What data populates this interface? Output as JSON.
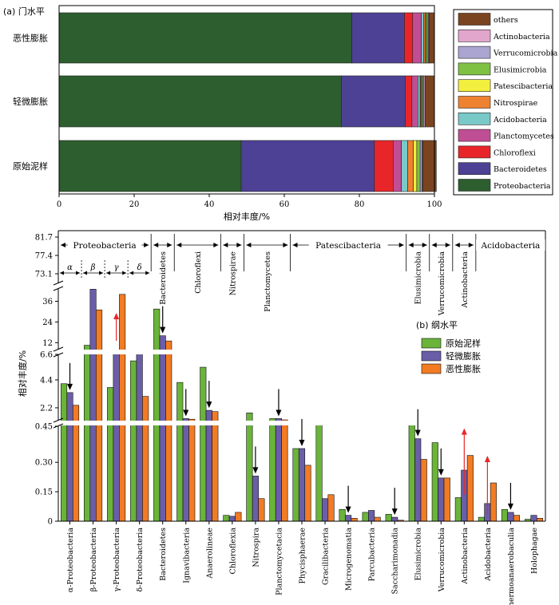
{
  "colors": {
    "phyla": {
      "Proteobacteria": "#2d5e2f",
      "Bacteroidetes": "#4d4195",
      "Chloroflexi": "#e8262a",
      "Planctomycetes": "#c04e95",
      "Acidobacteria": "#79c9c9",
      "Nitrospirae": "#ef8231",
      "Patescibacteria": "#f2ef3f",
      "Elusimicrobia": "#7fc143",
      "Verrucomicrobia": "#aaa4d0",
      "Actinobacteria": "#e2a6cc",
      "others": "#7a4420"
    },
    "groups": {
      "原始泥样": "#6ab43a",
      "轻微膨胀": "#6b5ea8",
      "恶性膨胀": "#f27b23"
    },
    "arrow_down": "#000000",
    "arrow_up": "#e8262a"
  },
  "chart_data": [
    {
      "type": "bar",
      "orientation": "horizontal",
      "stacked": true,
      "title": "(a) 门水平",
      "xlabel": "相对丰度/%",
      "xlim": [
        0,
        100
      ],
      "xticks": [
        "0",
        "20",
        "40",
        "60",
        "80",
        "100"
      ],
      "categories": [
        "恶性膨胀",
        "轻微膨胀",
        "原始泥样"
      ],
      "series": [
        {
          "name": "Proteobacteria",
          "values": [
            78.0,
            75.2,
            48.5
          ]
        },
        {
          "name": "Bacteroidetes",
          "values": [
            14.0,
            17.0,
            35.5
          ]
        },
        {
          "name": "Chloroflexi",
          "values": [
            2.2,
            1.8,
            5.0
          ]
        },
        {
          "name": "Planctomycetes",
          "values": [
            2.3,
            1.6,
            2.2
          ]
        },
        {
          "name": "Acidobacteria",
          "values": [
            0.6,
            0.6,
            1.7
          ]
        },
        {
          "name": "Nitrospirae",
          "values": [
            0.4,
            0.2,
            1.5
          ]
        },
        {
          "name": "Patescibacteria",
          "values": [
            0.2,
            0.2,
            0.9
          ]
        },
        {
          "name": "Elusimicrobia",
          "values": [
            0.4,
            0.3,
            0.9
          ]
        },
        {
          "name": "Verrucomicrobia",
          "values": [
            0.3,
            0.3,
            0.5
          ]
        },
        {
          "name": "Actinobacteria",
          "values": [
            0.2,
            0.3,
            0.2
          ]
        },
        {
          "name": "others",
          "values": [
            1.4,
            2.5,
            3.6
          ]
        }
      ],
      "legend": {
        "placement": "right",
        "items": [
          "others",
          "Actinobacteria",
          "Verrucomicrobia",
          "Elusimicrobia",
          "Patescibacteria",
          "Nitrospirae",
          "Acidobacteria",
          "Planctomycetes",
          "Chloroflexi",
          "Bacteroidetes",
          "Proteobacteria"
        ]
      }
    },
    {
      "type": "bar",
      "title": "(b) 纲水平",
      "ylabel": "相对丰度/%",
      "y_axis_breaks": true,
      "yticks_upper": [
        "81.7",
        "77.4",
        "73.1"
      ],
      "yticks_top": [
        "36",
        "24",
        "12"
      ],
      "yticks_middle": [
        "6.6",
        "4.4",
        "2.2"
      ],
      "yticks_bottom": [
        "0.45",
        "0.30",
        "0.15",
        "0"
      ],
      "categories": [
        "α-Proteobacteria",
        "β-Proteobacteria",
        "γ-Proteobacteria",
        "δ-Proteobacteria",
        "Bacteroidetes",
        "Ignavibacteria",
        "Anaerolineae",
        "Chloroflexia",
        "Nitrospira",
        "Planctomycetacia",
        "Phycisphaerae",
        "Gracilibacteria",
        "Microgenomatia",
        "Parcubacteria",
        "Saccharimonadia",
        "Elusimicrobia",
        "Verrucomicrobia",
        "Actinobacteria",
        "Acidobacteria",
        "Thermoanaerobaculia",
        "Holophagae"
      ],
      "series": [
        {
          "name": "原始泥样",
          "values": [
            4.1,
            10.5,
            3.8,
            5.9,
            31.5,
            4.2,
            5.4,
            0.03,
            1.8,
            1.35,
            0.37,
            0.5,
            0.06,
            0.045,
            0.035,
            0.5,
            0.4,
            0.12,
            0.02,
            0.06,
            0.01
          ]
        },
        {
          "name": "轻微膨胀",
          "values": [
            3.4,
            43.0,
            6.5,
            6.5,
            16.0,
            1.35,
            2.0,
            0.025,
            0.23,
            1.35,
            0.37,
            0.115,
            0.03,
            0.055,
            0.02,
            0.42,
            0.22,
            0.26,
            0.09,
            0.045,
            0.03
          ]
        },
        {
          "name": "恶性膨胀",
          "values": [
            2.4,
            31.0,
            40.0,
            3.1,
            13.0,
            1.3,
            1.9,
            0.045,
            0.115,
            1.25,
            0.285,
            0.135,
            0.015,
            0.02,
            0.005,
            0.315,
            0.22,
            0.335,
            0.195,
            0.03,
            0.015
          ]
        }
      ],
      "arrows": [
        {
          "category": "α-Proteobacteria",
          "direction": "down"
        },
        {
          "category": "γ-Proteobacteria",
          "direction": "up"
        },
        {
          "category": "Bacteroidetes",
          "direction": "down"
        },
        {
          "category": "Ignavibacteria",
          "direction": "down"
        },
        {
          "category": "Anaerolineae",
          "direction": "down"
        },
        {
          "category": "Nitrospira",
          "direction": "down"
        },
        {
          "category": "Planctomycetacia",
          "direction": "down"
        },
        {
          "category": "Phycisphaerae",
          "direction": "down"
        },
        {
          "category": "Microgenomatia",
          "direction": "down"
        },
        {
          "category": "Saccharimonadia",
          "direction": "down"
        },
        {
          "category": "Elusimicrobia",
          "direction": "down"
        },
        {
          "category": "Verrucomicrobia",
          "direction": "down"
        },
        {
          "category": "Actinobacteria",
          "direction": "up"
        },
        {
          "category": "Acidobacteria",
          "direction": "up"
        },
        {
          "category": "Thermoanaerobaculia",
          "direction": "down"
        }
      ],
      "phylum_groups": [
        {
          "label": "Proteobacteria",
          "first": 0,
          "last": 3,
          "label_orientation": "horizontal"
        },
        {
          "label": "Bacteroidetes",
          "first": 4,
          "last": 4,
          "label_orientation": "vertical"
        },
        {
          "label": "Chloroflexi",
          "first": 5,
          "last": 6,
          "label_orientation": "vertical"
        },
        {
          "label": "Nitrospirae",
          "first": 7,
          "last": 7,
          "label_orientation": "vertical"
        },
        {
          "label": "Planctomycetes",
          "first": 8,
          "last": 9,
          "label_orientation": "vertical"
        },
        {
          "label": "Patescibacteria",
          "first": 10,
          "last": 14,
          "label_orientation": "horizontal"
        },
        {
          "label": "Elusimicrobia",
          "first": 15,
          "last": 15,
          "label_orientation": "vertical"
        },
        {
          "label": "Verrucomicrobia",
          "first": 16,
          "last": 16,
          "label_orientation": "vertical"
        },
        {
          "label": "Actinobacteria",
          "first": 17,
          "last": 17,
          "label_orientation": "vertical"
        },
        {
          "label": "Acidobacteria",
          "first": 18,
          "last": 20,
          "label_orientation": "horizontal"
        }
      ],
      "subclass_labels": [
        "α",
        "β",
        "γ",
        "δ"
      ],
      "legend": {
        "placement": "right",
        "items": [
          "原始泥样",
          "轻微膨胀",
          "恶性膨胀"
        ]
      }
    }
  ]
}
